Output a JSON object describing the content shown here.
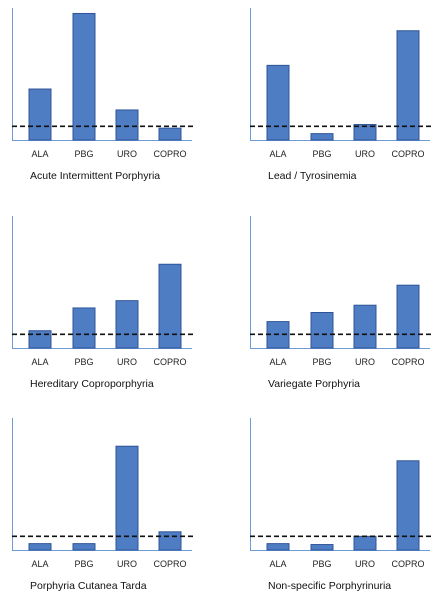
{
  "chart_data": [
    {
      "type": "bar",
      "title": "Acute Intermittent Porphyria",
      "categories": [
        "ALA",
        "PBG",
        "URO",
        "COPRO"
      ],
      "values": [
        5.6,
        13.9,
        3.3,
        1.3
      ],
      "reference_line": 1.5,
      "ylim": [
        0,
        14.5
      ],
      "color": "#4F7DC4",
      "grid": false
    },
    {
      "type": "bar",
      "title": "Lead / Tyrosinemia",
      "categories": [
        "ALA",
        "PBG",
        "URO",
        "COPRO"
      ],
      "values": [
        8.2,
        0.7,
        1.7,
        12.0
      ],
      "reference_line": 1.5,
      "ylim": [
        0,
        14.5
      ],
      "color": "#4F7DC4",
      "grid": false
    },
    {
      "type": "bar",
      "title": "Hereditary Coproporphyria",
      "categories": [
        "ALA",
        "PBG",
        "URO",
        "COPRO"
      ],
      "values": [
        1.9,
        4.4,
        5.2,
        9.2
      ],
      "reference_line": 1.5,
      "ylim": [
        0,
        14.5
      ],
      "color": "#4F7DC4",
      "grid": false
    },
    {
      "type": "bar",
      "title": "Variegate Porphyria",
      "categories": [
        "ALA",
        "PBG",
        "URO",
        "COPRO"
      ],
      "values": [
        2.9,
        3.9,
        4.7,
        6.9
      ],
      "reference_line": 1.5,
      "ylim": [
        0,
        14.5
      ],
      "color": "#4F7DC4",
      "grid": false
    },
    {
      "type": "bar",
      "title": "Porphyria Cutanea Tarda",
      "categories": [
        "ALA",
        "PBG",
        "URO",
        "COPRO"
      ],
      "values": [
        0.7,
        0.7,
        11.4,
        2.0
      ],
      "reference_line": 1.5,
      "ylim": [
        0,
        14.5
      ],
      "color": "#4F7DC4",
      "grid": false
    },
    {
      "type": "bar",
      "title": "Non-specific Porphyrinuria",
      "categories": [
        "ALA",
        "PBG",
        "URO",
        "COPRO"
      ],
      "values": [
        0.7,
        0.6,
        1.5,
        9.8
      ],
      "reference_line": 1.5,
      "ylim": [
        0,
        14.5
      ],
      "color": "#4F7DC4",
      "grid": false
    }
  ]
}
